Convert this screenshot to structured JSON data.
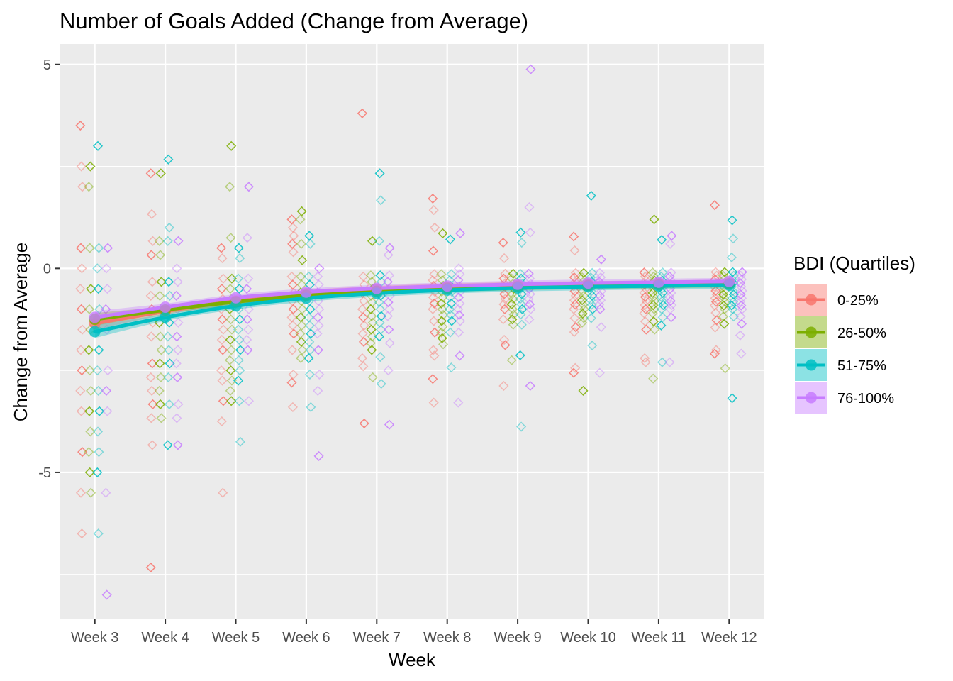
{
  "chart_data": {
    "type": "scatter",
    "title": "Number of Goals Added (Change from Average)",
    "xlabel": "Week",
    "ylabel": "Change from Average",
    "categories": [
      "Week 3",
      "Week 4",
      "Week 5",
      "Week 6",
      "Week 7",
      "Week 8",
      "Week 9",
      "Week 10",
      "Week 11",
      "Week 12"
    ],
    "yticks": [
      -5,
      0,
      5
    ],
    "ylim": [
      -8.6,
      5.5
    ],
    "grid": true,
    "legend": {
      "title": "BDI (Quartiles)",
      "position": "right"
    },
    "series": [
      {
        "name": "0-25%",
        "color": "#F8766D",
        "trend": [
          -1.35,
          -1.05,
          -0.8,
          -0.62,
          -0.52,
          -0.46,
          -0.42,
          -0.4,
          -0.38,
          -0.37
        ],
        "points": [
          [
            3.5,
            2.5,
            2.0,
            0.5,
            0.0,
            -0.5,
            -1.0,
            -1.5,
            -2.0,
            -2.5,
            -3.0,
            -3.5,
            -4.5,
            -5.5,
            -6.5
          ],
          [
            2.33,
            1.33,
            0.67,
            0.33,
            -0.33,
            -0.67,
            -1.0,
            -1.33,
            -1.67,
            -2.33,
            -2.67,
            -3.0,
            -3.33,
            -3.67,
            -4.33,
            -7.33
          ],
          [
            0.5,
            0.25,
            -0.25,
            -0.5,
            -0.75,
            -1.0,
            -1.25,
            -1.5,
            -1.75,
            -2.0,
            -2.5,
            -2.75,
            -3.25,
            -3.75,
            -5.5
          ],
          [
            1.2,
            1.0,
            0.8,
            0.6,
            0.4,
            -0.2,
            -0.4,
            -0.6,
            -0.8,
            -1.0,
            -1.2,
            -1.4,
            -1.6,
            -2.0,
            -2.6,
            -2.8,
            -3.4
          ],
          [
            3.8,
            -0.2,
            -0.4,
            -0.6,
            -0.8,
            -1.0,
            -1.2,
            -1.4,
            -1.6,
            -1.8,
            -2.2,
            -2.4,
            -3.8
          ],
          [
            1.71,
            1.43,
            1.0,
            0.43,
            -0.14,
            -0.29,
            -0.43,
            -0.57,
            -0.71,
            -0.86,
            -1.0,
            -1.29,
            -1.57,
            -2.0,
            -2.14,
            -2.71,
            -3.29
          ],
          [
            0.63,
            0.25,
            -0.13,
            -0.25,
            -0.38,
            -0.5,
            -0.63,
            -0.75,
            -0.88,
            -1.0,
            -1.25,
            -1.75,
            -1.88,
            -2.88
          ],
          [
            0.78,
            0.44,
            -0.11,
            -0.22,
            -0.33,
            -0.44,
            -0.56,
            -0.67,
            -0.78,
            -0.89,
            -1.0,
            -1.22,
            -1.44,
            -1.56,
            -2.44,
            -2.56
          ],
          [
            -0.1,
            -0.2,
            -0.3,
            -0.4,
            -0.5,
            -0.6,
            -0.7,
            -0.8,
            -0.9,
            -1.0,
            -1.1,
            -1.3,
            -1.5,
            -2.2,
            -2.3
          ],
          [
            1.55,
            -0.09,
            -0.18,
            -0.27,
            -0.36,
            -0.45,
            -0.55,
            -0.64,
            -0.73,
            -0.82,
            -0.91,
            -1.09,
            -1.27,
            -1.45,
            -2.0,
            -2.09
          ]
        ]
      },
      {
        "name": "26-50%",
        "color": "#7CAE00",
        "trend": [
          -1.25,
          -1.02,
          -0.82,
          -0.66,
          -0.56,
          -0.49,
          -0.45,
          -0.42,
          -0.4,
          -0.38
        ],
        "points": [
          [
            2.5,
            2.0,
            0.5,
            -0.5,
            -1.0,
            -1.5,
            -2.0,
            -2.5,
            -3.0,
            -3.5,
            -4.0,
            -4.5,
            -5.0,
            -5.5
          ],
          [
            2.33,
            0.67,
            0.33,
            -0.33,
            -0.67,
            -1.0,
            -1.33,
            -1.67,
            -2.0,
            -2.33,
            -2.67,
            -3.0,
            -3.33,
            -3.67
          ],
          [
            3.0,
            2.0,
            0.75,
            -0.25,
            -0.5,
            -0.75,
            -1.0,
            -1.25,
            -1.5,
            -1.75,
            -2.0,
            -2.25,
            -2.5,
            -2.75,
            -3.0,
            -3.25
          ],
          [
            1.4,
            1.2,
            0.6,
            0.2,
            -0.2,
            -0.4,
            -0.6,
            -0.8,
            -1.0,
            -1.2,
            -1.4,
            -1.6,
            -1.8,
            -2.0,
            -2.2
          ],
          [
            0.67,
            -0.17,
            -0.33,
            -0.5,
            -0.67,
            -0.83,
            -1.0,
            -1.17,
            -1.33,
            -1.5,
            -1.67,
            -1.83,
            -2.0,
            -2.67
          ],
          [
            0.86,
            -0.14,
            -0.29,
            -0.43,
            -0.57,
            -0.71,
            -0.86,
            -1.0,
            -1.14,
            -1.29,
            -1.43,
            -1.57,
            -1.71,
            -1.86
          ],
          [
            -0.13,
            -0.25,
            -0.38,
            -0.5,
            -0.63,
            -0.75,
            -0.88,
            -1.0,
            -1.13,
            -1.25,
            -1.38,
            -2.25
          ],
          [
            -0.11,
            -0.22,
            -0.33,
            -0.44,
            -0.56,
            -0.67,
            -0.78,
            -0.89,
            -1.0,
            -1.11,
            -1.22,
            -1.33,
            -3.0
          ],
          [
            1.2,
            -0.1,
            -0.2,
            -0.3,
            -0.4,
            -0.5,
            -0.6,
            -0.7,
            -0.8,
            -0.9,
            -1.0,
            -1.1,
            -1.3,
            -1.5,
            -2.7
          ],
          [
            -0.09,
            -0.18,
            -0.27,
            -0.36,
            -0.45,
            -0.55,
            -0.64,
            -0.73,
            -0.82,
            -0.91,
            -1.0,
            -1.18,
            -1.36,
            -2.45
          ]
        ]
      },
      {
        "name": "51-75%",
        "color": "#00BFC4",
        "trend": [
          -1.55,
          -1.2,
          -0.92,
          -0.73,
          -0.61,
          -0.53,
          -0.48,
          -0.45,
          -0.43,
          -0.41
        ],
        "points": [
          [
            3.0,
            0.5,
            0.0,
            -0.5,
            -1.0,
            -1.5,
            -2.0,
            -2.5,
            -3.0,
            -3.5,
            -4.0,
            -4.5,
            -5.0,
            -6.5
          ],
          [
            2.67,
            1.0,
            0.67,
            -0.33,
            -0.67,
            -1.0,
            -1.33,
            -1.67,
            -2.0,
            -2.33,
            -2.67,
            -3.33,
            -4.33
          ],
          [
            0.5,
            0.25,
            -0.25,
            -0.5,
            -0.75,
            -1.0,
            -1.25,
            -1.5,
            -1.75,
            -2.0,
            -2.25,
            -2.5,
            -2.75,
            -3.25,
            -4.25
          ],
          [
            0.8,
            0.6,
            -0.2,
            -0.4,
            -0.6,
            -0.8,
            -1.0,
            -1.2,
            -1.4,
            -1.6,
            -1.8,
            -2.0,
            -2.2,
            -2.6,
            -3.4
          ],
          [
            2.33,
            1.67,
            0.67,
            -0.17,
            -0.33,
            -0.5,
            -0.67,
            -0.83,
            -1.0,
            -1.17,
            -1.33,
            -1.5,
            -1.67,
            -2.17,
            -2.83
          ],
          [
            0.71,
            -0.14,
            -0.29,
            -0.43,
            -0.57,
            -0.71,
            -0.86,
            -1.0,
            -1.14,
            -1.29,
            -1.57,
            -2.43
          ],
          [
            0.88,
            0.63,
            -0.13,
            -0.25,
            -0.38,
            -0.5,
            -0.63,
            -0.75,
            -0.88,
            -1.0,
            -1.13,
            -1.38,
            -2.13,
            -3.88
          ],
          [
            1.78,
            -0.11,
            -0.22,
            -0.33,
            -0.44,
            -0.56,
            -0.67,
            -0.78,
            -0.89,
            -1.0,
            -1.22,
            -1.89
          ],
          [
            0.7,
            -0.1,
            -0.2,
            -0.3,
            -0.4,
            -0.5,
            -0.6,
            -0.7,
            -0.8,
            -0.9,
            -1.0,
            -1.2,
            -1.4,
            -2.3
          ],
          [
            1.18,
            0.73,
            0.27,
            -0.09,
            -0.18,
            -0.27,
            -0.36,
            -0.45,
            -0.55,
            -0.64,
            -0.73,
            -0.82,
            -0.91,
            -1.0,
            -1.18,
            -3.18
          ]
        ]
      },
      {
        "name": "76-100%",
        "color": "#C77CFF",
        "trend": [
          -1.2,
          -0.95,
          -0.72,
          -0.58,
          -0.49,
          -0.43,
          -0.39,
          -0.36,
          -0.34,
          -0.32
        ],
        "points": [
          [
            0.5,
            0.0,
            -0.5,
            -1.0,
            -1.5,
            -2.5,
            -3.0,
            -3.5,
            -5.5,
            -8.0
          ],
          [
            0.67,
            0.0,
            -0.33,
            -0.67,
            -1.0,
            -1.33,
            -1.67,
            -2.0,
            -2.33,
            -2.67,
            -3.33,
            -3.67,
            -4.33
          ],
          [
            2.0,
            0.75,
            -0.25,
            -0.5,
            -0.75,
            -1.0,
            -1.25,
            -1.5,
            -1.75,
            -2.0,
            -3.25
          ],
          [
            0.0,
            -0.2,
            -0.4,
            -0.6,
            -0.8,
            -1.0,
            -1.2,
            -1.4,
            -1.6,
            -2.0,
            -2.6,
            -3.0,
            -4.6
          ],
          [
            0.5,
            0.33,
            -0.17,
            -0.33,
            -0.5,
            -0.67,
            -0.83,
            -1.0,
            -1.17,
            -1.5,
            -1.83,
            -2.5,
            -3.83
          ],
          [
            0.86,
            0.0,
            -0.14,
            -0.29,
            -0.43,
            -0.57,
            -0.71,
            -0.86,
            -1.0,
            -1.14,
            -1.29,
            -1.57,
            -2.14,
            -3.29
          ],
          [
            4.88,
            1.5,
            0.88,
            -0.13,
            -0.25,
            -0.38,
            -0.5,
            -0.63,
            -0.75,
            -0.88,
            -1.0,
            -1.25,
            -2.88
          ],
          [
            0.22,
            -0.11,
            -0.22,
            -0.33,
            -0.44,
            -0.56,
            -0.67,
            -0.78,
            -0.89,
            -1.0,
            -1.44,
            -2.56
          ],
          [
            0.8,
            0.6,
            -0.1,
            -0.2,
            -0.3,
            -0.4,
            -0.5,
            -0.6,
            -0.7,
            -0.8,
            -0.9,
            -1.0,
            -1.2,
            -2.3
          ],
          [
            -0.09,
            -0.18,
            -0.27,
            -0.36,
            -0.45,
            -0.55,
            -0.64,
            -0.73,
            -0.82,
            -0.91,
            -1.0,
            -1.18,
            -1.36,
            -1.64,
            -2.09
          ]
        ]
      }
    ]
  }
}
